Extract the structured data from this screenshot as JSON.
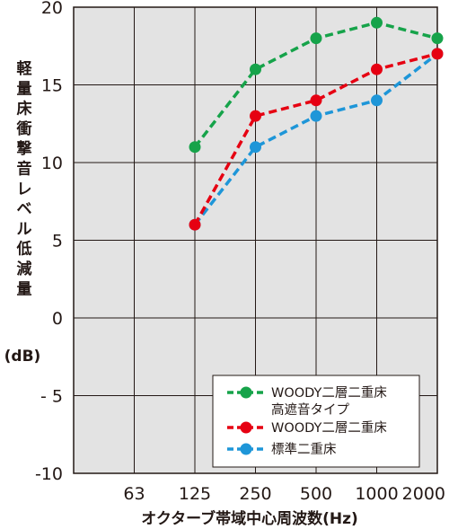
{
  "chart_data": {
    "type": "line",
    "title": "",
    "xlabel": "オクターブ帯域中心周波数(Hz)",
    "ylabel": "軽量床衝撃音レベル低減量(dB)",
    "ylabel_chars": [
      "軽",
      "量",
      "床",
      "衝",
      "撃",
      "音",
      "レ",
      "ベ",
      "ル",
      "低",
      "減",
      "量"
    ],
    "ylabel_unit": "(dB)",
    "categories": [
      "63",
      "125",
      "250",
      "500",
      "1000",
      "2000"
    ],
    "ylim": [
      -10,
      20
    ],
    "yticks": [
      20,
      15,
      10,
      5,
      0,
      -5,
      -10
    ],
    "ytick_labels": [
      "20",
      "15",
      "10",
      "5",
      "0",
      "- 5",
      "-10"
    ],
    "grid": true,
    "legend_position": "bottom-right",
    "series": [
      {
        "name_lines": [
          "WOODY二層二重床",
          "高遮音タイプ"
        ],
        "color": "#16a34a",
        "values": [
          null,
          11,
          16,
          18,
          19,
          18
        ]
      },
      {
        "name_lines": [
          "WOODY二層二重床"
        ],
        "color": "#e60012",
        "values": [
          null,
          6,
          13,
          14,
          16,
          17
        ]
      },
      {
        "name_lines": [
          "標準二重床"
        ],
        "color": "#1e96d8",
        "values": [
          null,
          6,
          11,
          13,
          14,
          17
        ]
      }
    ]
  }
}
